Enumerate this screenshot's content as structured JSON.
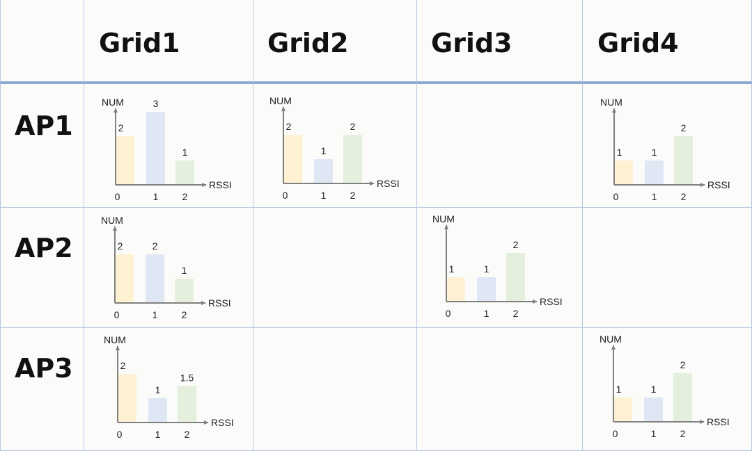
{
  "columns": [
    "Grid1",
    "Grid2",
    "Grid3",
    "Grid4"
  ],
  "rows": [
    "AP1",
    "AP2",
    "AP3"
  ],
  "colors": {
    "bar_0": "#fdf1d2",
    "bar_1": "#dfe7f4",
    "bar_2": "#e4efdd",
    "axis": "#808080",
    "grid_line": "#b7c8e2",
    "header_rule": "#8ea8d4"
  },
  "chart_data": [
    {
      "type": "bar",
      "row": "AP1",
      "column": "Grid1",
      "ylabel": "NUM",
      "xlabel": "RSSI",
      "categories": [
        "0",
        "1",
        "2"
      ],
      "values": [
        2,
        3,
        1
      ],
      "value_labels": [
        "2",
        "3",
        "1"
      ],
      "ylim": [
        0,
        3
      ]
    },
    {
      "type": "bar",
      "row": "AP1",
      "column": "Grid2",
      "ylabel": "NUM",
      "xlabel": "RSSI",
      "categories": [
        "0",
        "1",
        "2"
      ],
      "values": [
        2,
        1,
        2
      ],
      "value_labels": [
        "2",
        "1",
        "2"
      ],
      "ylim": [
        0,
        3
      ]
    },
    {
      "type": "bar",
      "row": "AP1",
      "column": "Grid4",
      "ylabel": "NUM",
      "xlabel": "RSSI",
      "categories": [
        "0",
        "1",
        "2"
      ],
      "values": [
        1,
        1,
        2
      ],
      "value_labels": [
        "1",
        "1",
        "2"
      ],
      "ylim": [
        0,
        3
      ]
    },
    {
      "type": "bar",
      "row": "AP2",
      "column": "Grid1",
      "ylabel": "NUM",
      "xlabel": "RSSI",
      "categories": [
        "0",
        "1",
        "2"
      ],
      "values": [
        2,
        2,
        1
      ],
      "value_labels": [
        "2",
        "2",
        "1"
      ],
      "ylim": [
        0,
        3
      ]
    },
    {
      "type": "bar",
      "row": "AP2",
      "column": "Grid3",
      "ylabel": "NUM",
      "xlabel": "RSSI",
      "categories": [
        "0",
        "1",
        "2"
      ],
      "values": [
        1,
        1,
        2
      ],
      "value_labels": [
        "1",
        "1",
        "2"
      ],
      "ylim": [
        0,
        3
      ]
    },
    {
      "type": "bar",
      "row": "AP3",
      "column": "Grid1",
      "ylabel": "NUM",
      "xlabel": "RSSI",
      "categories": [
        "0",
        "1",
        "2"
      ],
      "values": [
        2,
        1,
        1.5
      ],
      "value_labels": [
        "2",
        "1",
        "1.5"
      ],
      "ylim": [
        0,
        3
      ]
    },
    {
      "type": "bar",
      "row": "AP3",
      "column": "Grid4",
      "ylabel": "NUM",
      "xlabel": "RSSI",
      "categories": [
        "0",
        "1",
        "2"
      ],
      "values": [
        1,
        1,
        2
      ],
      "value_labels": [
        "1",
        "1",
        "2"
      ],
      "ylim": [
        0,
        3
      ]
    }
  ]
}
